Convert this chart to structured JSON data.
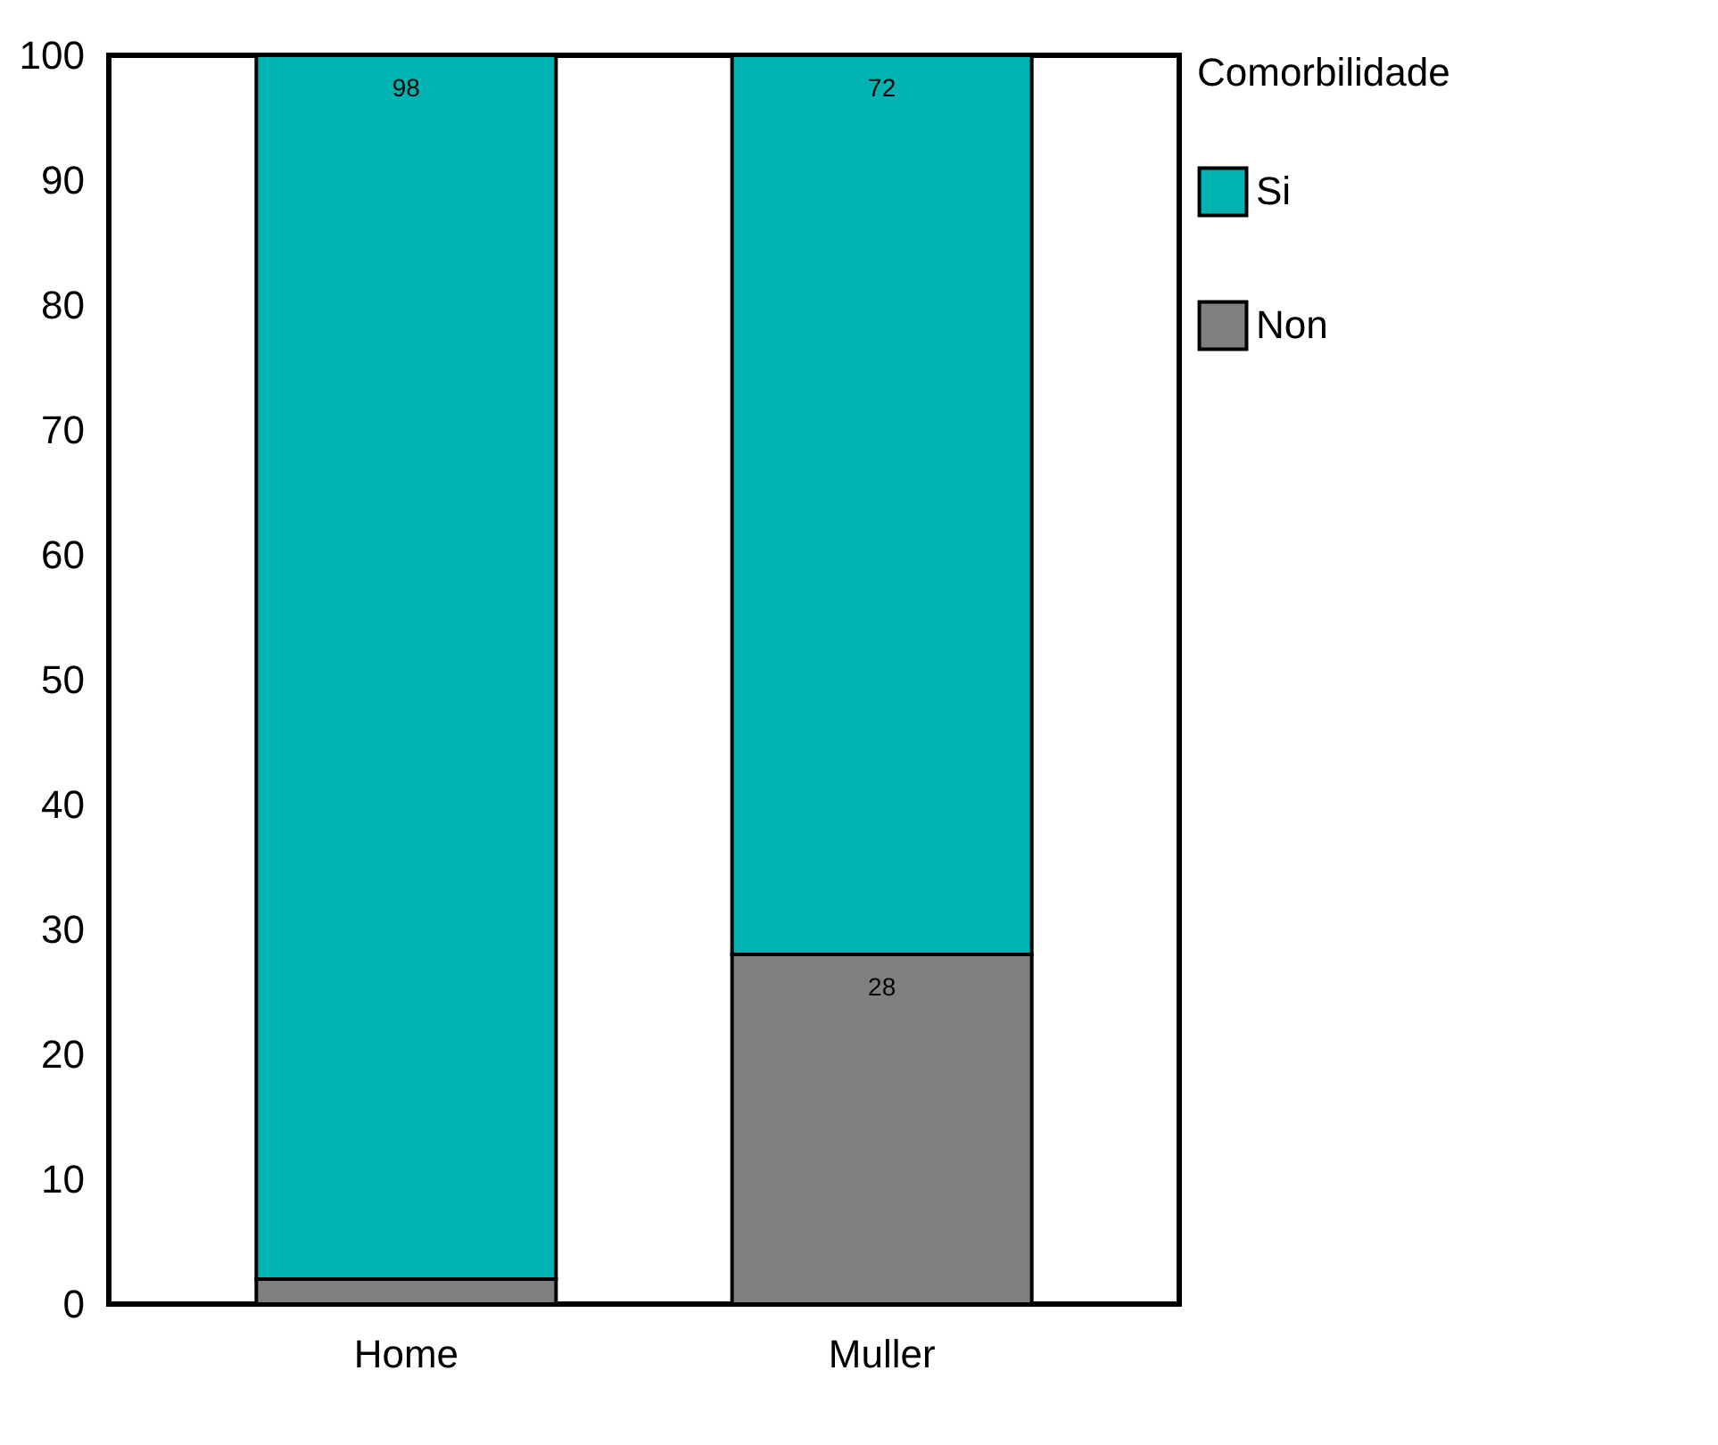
{
  "chart_data": {
    "type": "bar",
    "stacked": true,
    "categories": [
      "Home",
      "Muller"
    ],
    "series": [
      {
        "name": "Non",
        "color": "#808080",
        "values": [
          2,
          28
        ],
        "value_labels": [
          null,
          "28"
        ]
      },
      {
        "name": "Si",
        "color": "#00b2b2",
        "values": [
          98,
          72
        ],
        "value_labels": [
          "98",
          "72"
        ]
      }
    ],
    "ylim": [
      0,
      100
    ],
    "yticks": [
      0,
      10,
      20,
      30,
      40,
      50,
      60,
      70,
      80,
      90,
      100
    ],
    "legend_title": "Comorbilidade",
    "legend": "right",
    "grid": false
  }
}
